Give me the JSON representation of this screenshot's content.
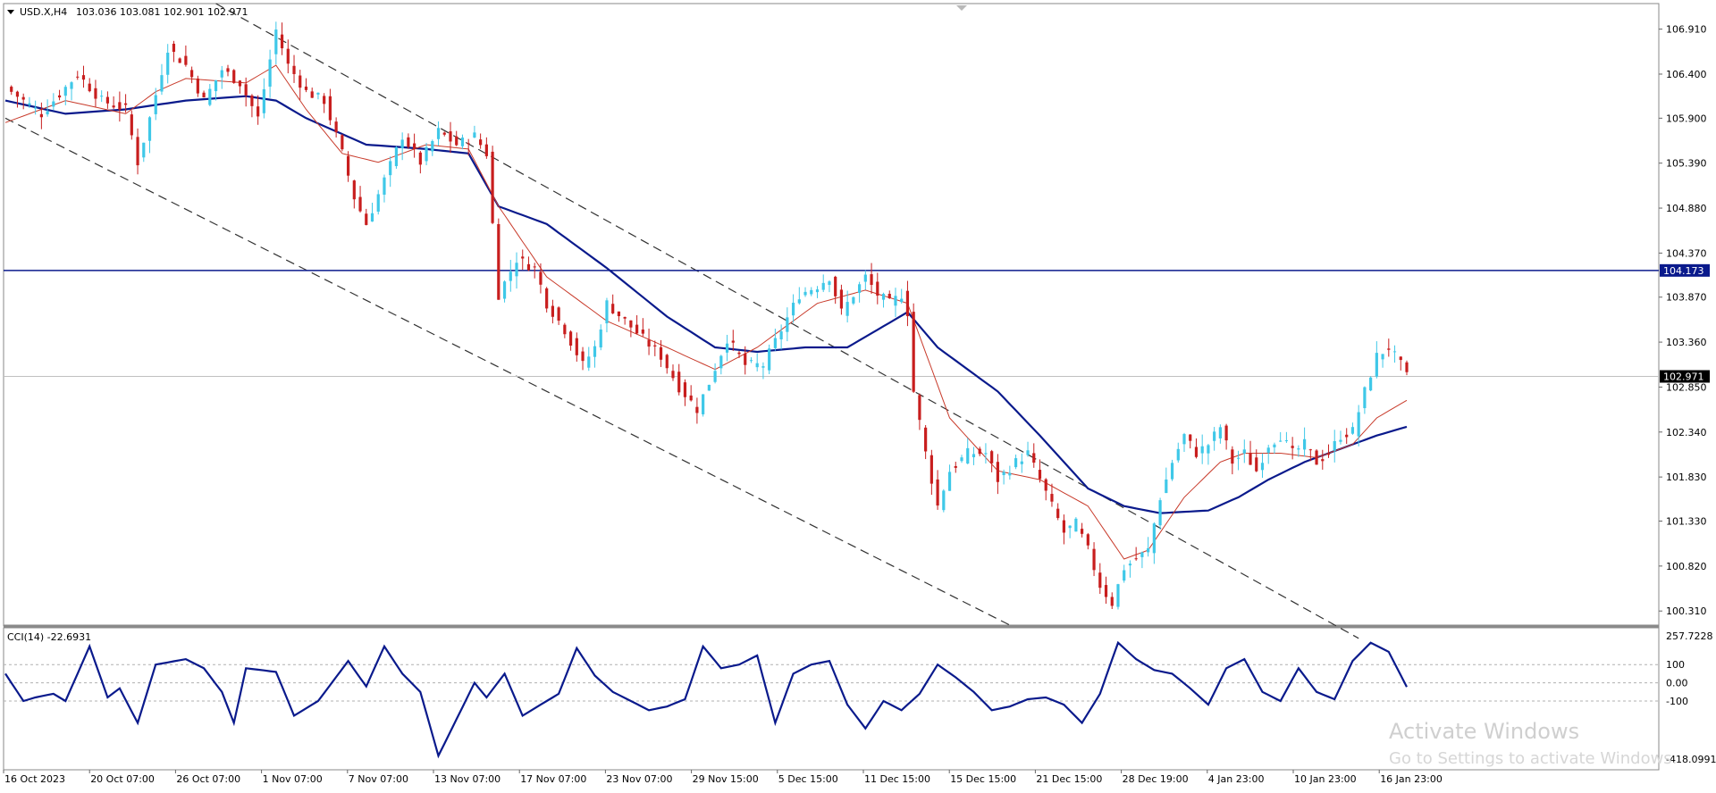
{
  "header": {
    "symbol_label": "USD.X,H4",
    "ohlc_label": "103.036 103.081 102.901 102.971"
  },
  "indicator": {
    "label": "CCI(14) -22.6931"
  },
  "watermark": {
    "line1": "Activate Windows",
    "line2": "Go to Settings to activate Windows."
  },
  "colors": {
    "bull": "#3fc8e8",
    "bear": "#c81e1e",
    "ma_slow": "#0a1a8c",
    "ma_fast": "#c83a2a",
    "level_line": "#0a1a8c",
    "channel": "#333333"
  },
  "chart_data": [
    {
      "type": "candlestick",
      "title": "",
      "symbol": "USD.X",
      "timeframe": "H4",
      "ylim": [
        100.15,
        107.2
      ],
      "y_ticks": [
        "106.910",
        "106.400",
        "105.900",
        "105.390",
        "104.880",
        "104.370",
        "103.870",
        "103.360",
        "102.850",
        "102.340",
        "101.830",
        "101.330",
        "100.820",
        "100.310"
      ],
      "x_ticks": [
        "16 Oct 2023",
        "20 Oct 07:00",
        "26 Oct 07:00",
        "1 Nov 07:00",
        "7 Nov 07:00",
        "13 Nov 07:00",
        "17 Nov 07:00",
        "23 Nov 07:00",
        "29 Nov 15:00",
        "5 Dec 15:00",
        "11 Dec 15:00",
        "15 Dec 15:00",
        "21 Dec 15:00",
        "28 Dec 19:00",
        "4 Jan 23:00",
        "10 Jan 23:00",
        "16 Jan 23:00"
      ],
      "current_price": "102.971",
      "current_price_value": 102.971,
      "horizontal_level": "104.173",
      "horizontal_level_value": 104.173,
      "close_path": [
        [
          0,
          106.25
        ],
        [
          6,
          105.95
        ],
        [
          12,
          106.4
        ],
        [
          16,
          106.1
        ],
        [
          20,
          106.0
        ],
        [
          22,
          105.4
        ],
        [
          24,
          105.9
        ],
        [
          27,
          106.7
        ],
        [
          30,
          106.5
        ],
        [
          33,
          106.1
        ],
        [
          36,
          106.45
        ],
        [
          39,
          106.3
        ],
        [
          42,
          105.9
        ],
        [
          45,
          106.9
        ],
        [
          47,
          106.5
        ],
        [
          50,
          106.2
        ],
        [
          53,
          106.1
        ],
        [
          56,
          105.5
        ],
        [
          58,
          105.0
        ],
        [
          60,
          104.7
        ],
        [
          63,
          105.2
        ],
        [
          66,
          105.7
        ],
        [
          69,
          105.4
        ],
        [
          72,
          105.75
        ],
        [
          75,
          105.6
        ],
        [
          78,
          105.7
        ],
        [
          80,
          105.5
        ],
        [
          82,
          103.9
        ],
        [
          85,
          104.3
        ],
        [
          88,
          104.2
        ],
        [
          90,
          103.8
        ],
        [
          93,
          103.5
        ],
        [
          96,
          103.1
        ],
        [
          98,
          103.3
        ],
        [
          100,
          103.8
        ],
        [
          103,
          103.6
        ],
        [
          106,
          103.4
        ],
        [
          109,
          103.2
        ],
        [
          112,
          102.85
        ],
        [
          115,
          102.6
        ],
        [
          117,
          102.9
        ],
        [
          120,
          103.4
        ],
        [
          123,
          103.1
        ],
        [
          126,
          103.1
        ],
        [
          129,
          103.5
        ],
        [
          132,
          103.9
        ],
        [
          135,
          104.0
        ],
        [
          137,
          104.1
        ],
        [
          139,
          103.7
        ],
        [
          141,
          103.9
        ],
        [
          143,
          104.1
        ],
        [
          145,
          103.9
        ],
        [
          147,
          103.8
        ],
        [
          149,
          103.9
        ],
        [
          150,
          103.7
        ],
        [
          151,
          102.8
        ],
        [
          153,
          102.1
        ],
        [
          155,
          101.5
        ],
        [
          157,
          101.9
        ],
        [
          160,
          102.1
        ],
        [
          163,
          102.1
        ],
        [
          165,
          101.8
        ],
        [
          168,
          102.0
        ],
        [
          170,
          102.1
        ],
        [
          172,
          101.8
        ],
        [
          174,
          101.5
        ],
        [
          176,
          101.2
        ],
        [
          178,
          101.3
        ],
        [
          180,
          101.0
        ],
        [
          182,
          100.6
        ],
        [
          184,
          100.4
        ],
        [
          186,
          100.8
        ],
        [
          188,
          100.9
        ],
        [
          190,
          101.0
        ],
        [
          192,
          101.6
        ],
        [
          194,
          102.0
        ],
        [
          196,
          102.3
        ],
        [
          198,
          102.1
        ],
        [
          200,
          102.2
        ],
        [
          202,
          102.4
        ],
        [
          204,
          102.0
        ],
        [
          206,
          102.1
        ],
        [
          208,
          101.9
        ],
        [
          210,
          102.2
        ],
        [
          212,
          102.3
        ],
        [
          214,
          102.1
        ],
        [
          216,
          102.2
        ],
        [
          218,
          102.0
        ],
        [
          220,
          102.1
        ],
        [
          222,
          102.3
        ],
        [
          224,
          102.35
        ],
        [
          226,
          102.8
        ],
        [
          228,
          103.2
        ],
        [
          230,
          103.3
        ],
        [
          232,
          103.1
        ],
        [
          233,
          102.97
        ]
      ],
      "series": [
        {
          "kind": "moving-average-slow",
          "points": [
            [
              0,
              106.1
            ],
            [
              10,
              105.95
            ],
            [
              20,
              106.0
            ],
            [
              30,
              106.1
            ],
            [
              40,
              106.15
            ],
            [
              45,
              106.1
            ],
            [
              50,
              105.9
            ],
            [
              60,
              105.6
            ],
            [
              70,
              105.55
            ],
            [
              77,
              105.5
            ],
            [
              82,
              104.9
            ],
            [
              90,
              104.7
            ],
            [
              100,
              104.2
            ],
            [
              110,
              103.65
            ],
            [
              118,
              103.3
            ],
            [
              125,
              103.25
            ],
            [
              133,
              103.3
            ],
            [
              140,
              103.3
            ],
            [
              150,
              103.7
            ],
            [
              155,
              103.3
            ],
            [
              165,
              102.8
            ],
            [
              172,
              102.3
            ],
            [
              180,
              101.7
            ],
            [
              186,
              101.5
            ],
            [
              192,
              101.42
            ],
            [
              200,
              101.45
            ],
            [
              205,
              101.6
            ],
            [
              210,
              101.8
            ],
            [
              216,
              102.0
            ],
            [
              222,
              102.15
            ],
            [
              228,
              102.3
            ],
            [
              233,
              102.4
            ]
          ]
        },
        {
          "kind": "moving-average-fast",
          "points": [
            [
              0,
              105.85
            ],
            [
              10,
              106.1
            ],
            [
              20,
              105.95
            ],
            [
              25,
              106.2
            ],
            [
              30,
              106.35
            ],
            [
              40,
              106.3
            ],
            [
              45,
              106.5
            ],
            [
              50,
              106.0
            ],
            [
              56,
              105.5
            ],
            [
              62,
              105.4
            ],
            [
              70,
              105.6
            ],
            [
              77,
              105.55
            ],
            [
              82,
              104.9
            ],
            [
              90,
              104.1
            ],
            [
              100,
              103.6
            ],
            [
              110,
              103.3
            ],
            [
              118,
              103.05
            ],
            [
              125,
              103.3
            ],
            [
              135,
              103.8
            ],
            [
              143,
              103.95
            ],
            [
              150,
              103.8
            ],
            [
              157,
              102.5
            ],
            [
              165,
              101.9
            ],
            [
              172,
              101.8
            ],
            [
              180,
              101.5
            ],
            [
              186,
              100.9
            ],
            [
              190,
              101.0
            ],
            [
              196,
              101.6
            ],
            [
              202,
              102.0
            ],
            [
              206,
              102.1
            ],
            [
              212,
              102.1
            ],
            [
              218,
              102.05
            ],
            [
              224,
              102.2
            ],
            [
              228,
              102.5
            ],
            [
              233,
              102.7
            ]
          ]
        }
      ],
      "channel_lines": [
        [
          [
            35,
            107.2
          ],
          [
            225,
            100.0
          ]
        ],
        [
          [
            0,
            105.9
          ],
          [
            167,
            100.15
          ]
        ]
      ]
    },
    {
      "type": "line",
      "title": "",
      "indicator": "CCI(14)",
      "last_value": -22.6931,
      "ylim": [
        -418.0991,
        257.7228
      ],
      "y_ticks": [
        "257.7228",
        "100",
        "0.00",
        "-100",
        "-418.0991"
      ],
      "y_levels": [
        100,
        0,
        -100
      ],
      "points": [
        [
          0,
          50
        ],
        [
          3,
          -100
        ],
        [
          5,
          -80
        ],
        [
          8,
          -60
        ],
        [
          10,
          -100
        ],
        [
          14,
          200
        ],
        [
          17,
          -80
        ],
        [
          19,
          -30
        ],
        [
          22,
          -220
        ],
        [
          25,
          100
        ],
        [
          30,
          130
        ],
        [
          33,
          80
        ],
        [
          36,
          -50
        ],
        [
          38,
          -220
        ],
        [
          40,
          80
        ],
        [
          45,
          60
        ],
        [
          48,
          -180
        ],
        [
          52,
          -100
        ],
        [
          57,
          120
        ],
        [
          60,
          -20
        ],
        [
          63,
          200
        ],
        [
          66,
          50
        ],
        [
          69,
          -50
        ],
        [
          72,
          -400
        ],
        [
          75,
          -200
        ],
        [
          78,
          0
        ],
        [
          80,
          -80
        ],
        [
          83,
          50
        ],
        [
          86,
          -180
        ],
        [
          89,
          -120
        ],
        [
          92,
          -60
        ],
        [
          95,
          190
        ],
        [
          98,
          40
        ],
        [
          101,
          -50
        ],
        [
          104,
          -100
        ],
        [
          107,
          -150
        ],
        [
          110,
          -130
        ],
        [
          113,
          -90
        ],
        [
          116,
          200
        ],
        [
          119,
          80
        ],
        [
          122,
          100
        ],
        [
          125,
          150
        ],
        [
          128,
          -220
        ],
        [
          131,
          50
        ],
        [
          134,
          100
        ],
        [
          137,
          120
        ],
        [
          140,
          -120
        ],
        [
          143,
          -250
        ],
        [
          146,
          -100
        ],
        [
          149,
          -150
        ],
        [
          152,
          -60
        ],
        [
          155,
          100
        ],
        [
          158,
          30
        ],
        [
          161,
          -50
        ],
        [
          164,
          -150
        ],
        [
          167,
          -130
        ],
        [
          170,
          -90
        ],
        [
          173,
          -80
        ],
        [
          176,
          -120
        ],
        [
          179,
          -220
        ],
        [
          182,
          -60
        ],
        [
          185,
          220
        ],
        [
          188,
          130
        ],
        [
          191,
          70
        ],
        [
          194,
          50
        ],
        [
          197,
          -30
        ],
        [
          200,
          -120
        ],
        [
          203,
          80
        ],
        [
          206,
          130
        ],
        [
          209,
          -50
        ],
        [
          212,
          -100
        ],
        [
          215,
          80
        ],
        [
          218,
          -50
        ],
        [
          221,
          -90
        ],
        [
          224,
          120
        ],
        [
          227,
          220
        ],
        [
          230,
          170
        ],
        [
          233,
          -22.7
        ]
      ]
    }
  ]
}
